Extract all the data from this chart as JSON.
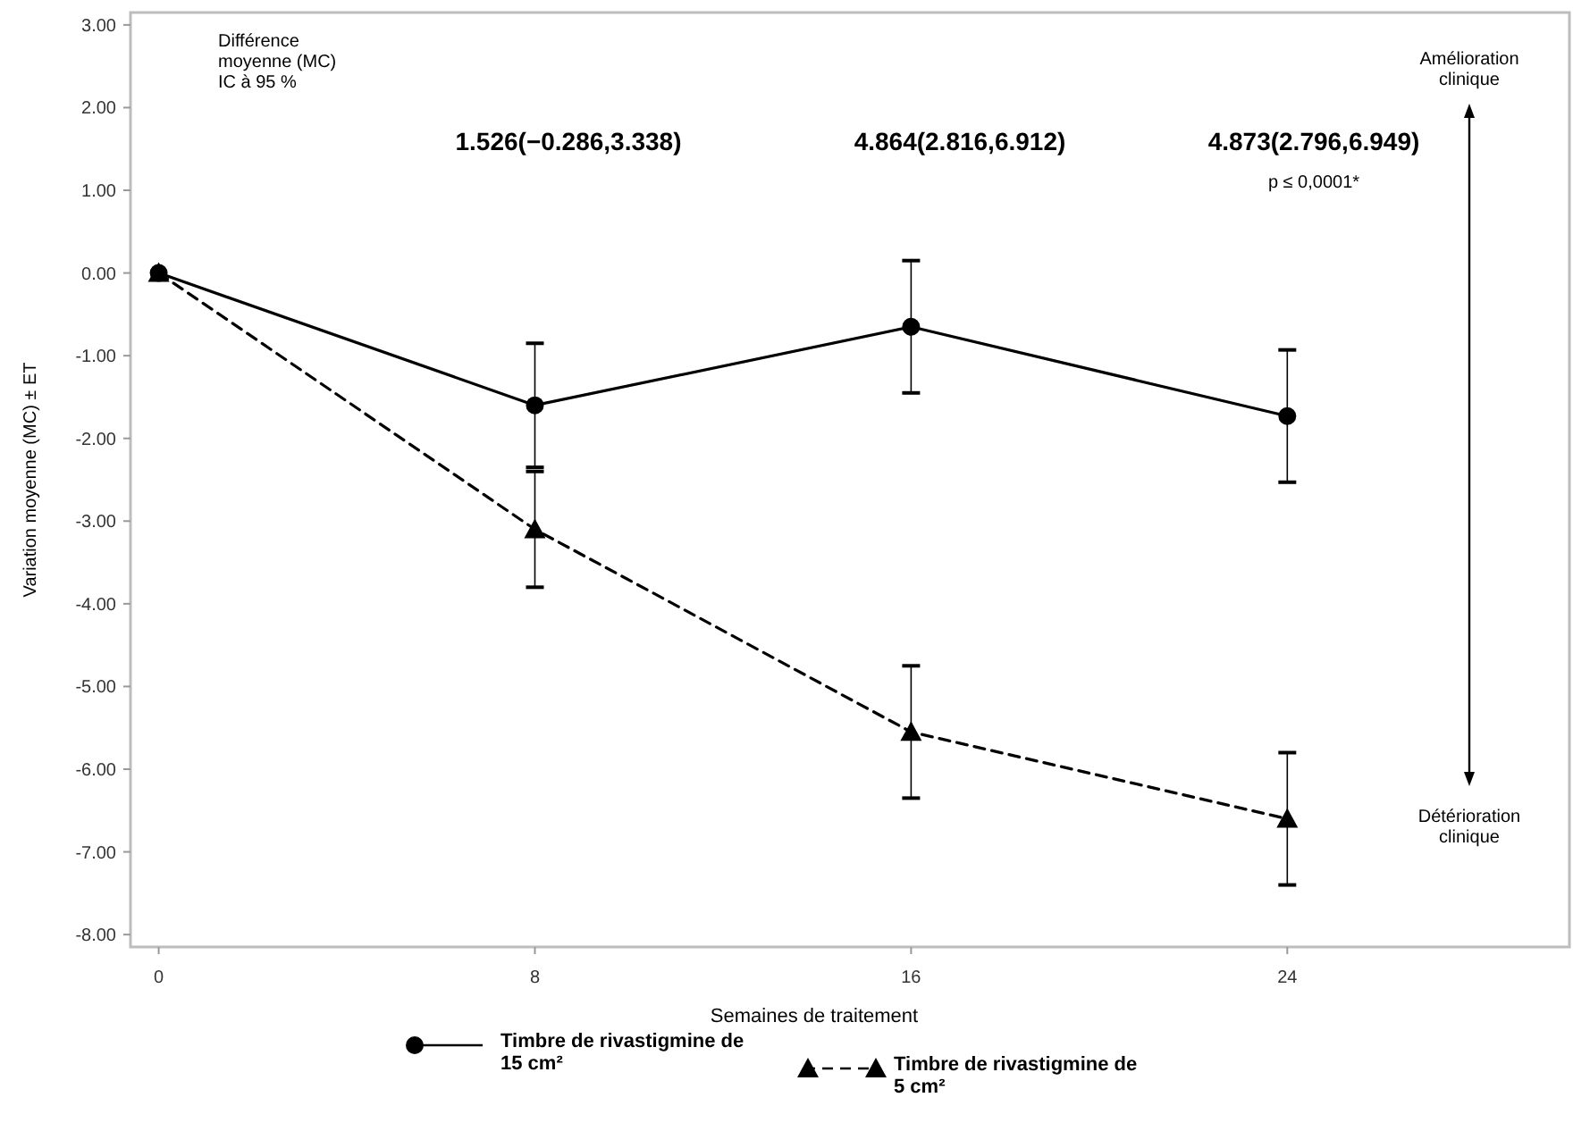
{
  "chart_data": {
    "type": "line",
    "xlabel": "Semaines de traitement",
    "ylabel": "Variation moyenne (MC) ± ET",
    "x": [
      0,
      8,
      16,
      24
    ],
    "xlim": [
      -0.6,
      30
    ],
    "xticks": [
      0,
      8,
      16,
      24
    ],
    "ylim": [
      -8.15,
      3.15
    ],
    "yticks": [
      {
        "value": 3,
        "label": "3.00"
      },
      {
        "value": 2,
        "label": "2.00"
      },
      {
        "value": 1,
        "label": "1.00"
      },
      {
        "value": 0,
        "label": "0.00"
      },
      {
        "value": -1,
        "label": "-1.00"
      },
      {
        "value": -2,
        "label": "-2.00"
      },
      {
        "value": -3,
        "label": "-3.00"
      },
      {
        "value": -4,
        "label": "-4.00"
      },
      {
        "value": -5,
        "label": "-5.00"
      },
      {
        "value": -6,
        "label": "-6.00"
      },
      {
        "value": -7,
        "label": "-7.00"
      },
      {
        "value": -8,
        "label": "-8.00"
      }
    ],
    "grid": false,
    "legend": "bottom",
    "series": [
      {
        "name": "Timbre de rivastigmine de 15 cm²",
        "color": "#000000",
        "values": [
          0,
          -1.6,
          -0.65,
          -1.73
        ],
        "errors": [
          null,
          0.75,
          0.8,
          0.8
        ],
        "marker": "circle",
        "line_style": "solid"
      },
      {
        "name": "Timbre de rivastigmine de 5 cm²",
        "color": "#000000",
        "values": [
          0,
          -3.1,
          -5.55,
          -6.6
        ],
        "errors": [
          null,
          0.7,
          0.8,
          0.8
        ],
        "marker": "triangle",
        "line_style": "dashed"
      }
    ],
    "annotations": [
      "Différence moyenne (MC) IC à 95 %",
      "1.526(−0.286,3.338)",
      "4.864(2.816,6.912)",
      "4.873(2.796,6.949)",
      "p ≤ 0,0001*",
      "Amélioration clinique",
      "Détérioration clinique"
    ]
  }
}
